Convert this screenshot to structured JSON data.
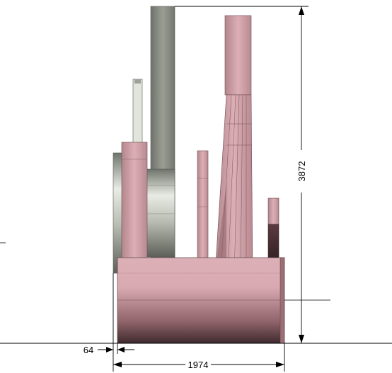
{
  "drawing": {
    "dimensions": {
      "total_height": "3872",
      "total_width": "1974",
      "offset": "64"
    }
  },
  "colors": {
    "pink_base": "#c99aa1",
    "pink_dark": "#4a2e33",
    "gray_housing": "#8c8f86",
    "steel_light": "#d4d8cf",
    "dimension_line": "#000000"
  }
}
